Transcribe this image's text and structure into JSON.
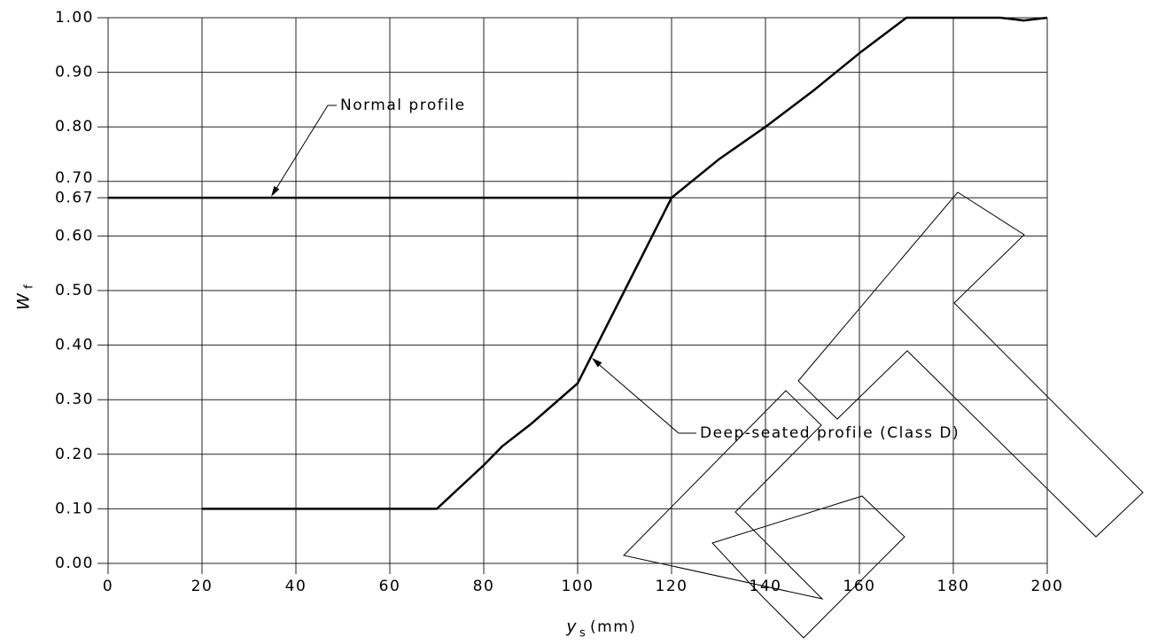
{
  "chart_data": {
    "type": "line",
    "x_label": "y",
    "x_label_sub": "s",
    "x_label_unit": "(mm)",
    "y_label": "W",
    "y_label_sub": "f",
    "xlim": [
      0,
      200
    ],
    "xticks": [
      0,
      20,
      40,
      60,
      80,
      100,
      120,
      140,
      160,
      180,
      200
    ],
    "ylim": [
      0,
      1
    ],
    "yticks": [
      {
        "value": 0,
        "label": "0.00"
      },
      {
        "value": 0.1,
        "label": "0.10"
      },
      {
        "value": 0.2,
        "label": "0.20"
      },
      {
        "value": 0.3,
        "label": "0.30"
      },
      {
        "value": 0.4,
        "label": "0.40"
      },
      {
        "value": 0.5,
        "label": "0.50"
      },
      {
        "value": 0.6,
        "label": "0.60"
      },
      0.67,
      {
        "value": 0.7,
        "label": "0.70"
      },
      {
        "value": 0.8,
        "label": "0.80"
      },
      {
        "value": 0.9,
        "label": "0.90"
      },
      {
        "value": 1,
        "label": "1.00"
      }
    ],
    "grid": true,
    "series": [
      {
        "name": "Normal profile",
        "color": "#000000",
        "x": [
          0,
          120
        ],
        "values": [
          0.67,
          0.67
        ]
      },
      {
        "name": "Deep-seated profile (Class D)",
        "color": "#000000",
        "x": [
          20,
          70,
          80,
          84,
          90,
          100,
          110,
          120,
          130,
          140,
          150,
          160,
          170,
          175,
          190,
          195,
          200
        ],
        "values": [
          0.1,
          0.1,
          0.18,
          0.215,
          0.255,
          0.33,
          0.5,
          0.67,
          0.74,
          0.8,
          0.865,
          0.935,
          1.0,
          1.0,
          1.0,
          0.995,
          1.0
        ]
      }
    ]
  }
}
